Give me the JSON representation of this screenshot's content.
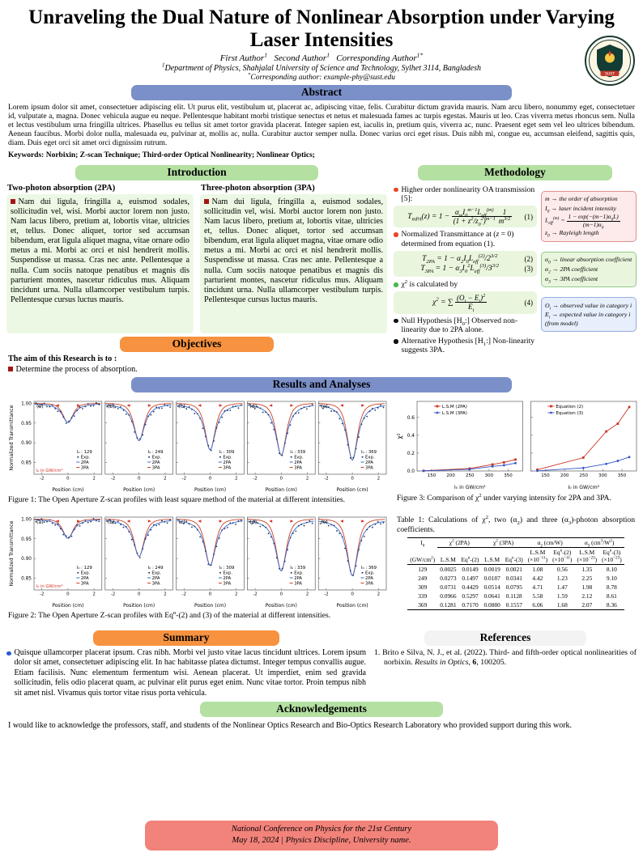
{
  "header": {
    "title": "Unraveling the Dual Nature of Nonlinear Absorption under Varying Laser Intensities",
    "authors_html": "First Author<sup>1</sup>&nbsp;&nbsp; Second Author<sup>1</sup>&nbsp;&nbsp; Corresponding Author<sup>1*</sup>",
    "affiliation_html": "<sup>1</sup>Department of Physics, Shahjalal University of Science and Technology, Sylhet 3114, Bangladesh",
    "corresponding_html": "<sup>*</sup>Corresponding author: example-phy@sust.edu",
    "logo_banner": "SUST"
  },
  "sections": {
    "abstract_title": "Abstract",
    "introduction_title": "Introduction",
    "methodology_title": "Methodology",
    "objectives_title": "Objectives",
    "results_title": "Results and Analyses",
    "summary_title": "Summary",
    "references_title": "References",
    "acknowledgements_title": "Acknowledgements"
  },
  "abstract": {
    "text": "Lorem ipsum dolor sit amet, consectetuer adipiscing elit. Ut purus elit, vestibulum ut, placerat ac, adipiscing vitae, felis. Curabitur dictum gravida mauris. Nam arcu libero, nonummy eget, consectetuer id, vulputate a, magna. Donec vehicula augue eu neque. Pellentesque habitant morbi tristique senectus et netus et malesuada fames ac turpis egestas. Mauris ut leo. Cras viverra metus rhoncus sem. Nulla et lectus vestibulum urna fringilla ultrices. Phasellus eu tellus sit amet tortor gravida placerat. Integer sapien est, iaculis in, pretium quis, viverra ac, nunc. Praesent eget sem vel leo ultrices bibendum. Aenean faucibus. Morbi dolor nulla, malesuada eu, pulvinar at, mollis ac, nulla. Curabitur auctor semper nulla. Donec varius orci eget risus. Duis nibh mi, congue eu, accumsan eleifend, sagittis quis, diam. Duis eget orci sit amet orci dignissim rutrum.",
    "keywords_html": "<b>Keywords: Norbixin; Z-scan Technique; Third-order Optical Nonlinearity; Nonlinear Optics;</b>"
  },
  "introduction": {
    "columns": [
      {
        "heading": "Two-photon absorption (2PA)",
        "text": "Nam dui ligula, fringilla a, euismod sodales, sollicitudin vel, wisi. Morbi auctor lorem non justo. Nam lacus libero, pretium at, lobortis vitae, ultricies et, tellus. Donec aliquet, tortor sed accumsan bibendum, erat ligula aliquet magna, vitae ornare odio metus a mi. Morbi ac orci et nisl hendrerit mollis. Suspendisse ut massa. Cras nec ante. Pellentesque a nulla. Cum sociis natoque penatibus et magnis dis parturient montes, nascetur ridiculus mus. Aliquam tincidunt urna. Nulla ullamcorper vestibulum turpis. Pellentesque cursus luctus mauris."
      },
      {
        "heading": "Three-photon absorption (3PA)",
        "text": "Nam dui ligula, fringilla a, euismod sodales, sollicitudin vel, wisi. Morbi auctor lorem non justo. Nam lacus libero, pretium at, lobortis vitae, ultricies et, tellus. Donec aliquet, tortor sed accumsan bibendum, erat ligula aliquet magna, vitae ornare odio metus a mi. Morbi ac orci et nisl hendrerit mollis. Suspendisse ut massa. Cras nec ante. Pellentesque a nulla. Cum sociis natoque penatibus et magnis dis parturient montes, nascetur ridiculus mus. Aliquam tincidunt urna. Nulla ullamcorper vestibulum turpis. Pellentesque cursus luctus mauris."
      }
    ]
  },
  "objectives": {
    "lead": "The aim of this Research is to :",
    "items": [
      "Determine the process of absorption."
    ]
  },
  "methodology": {
    "bullets_html": [
      "Higher order nonlinearity OA transmission [5]:",
      "Normalized Transmittance at (<i>z</i> = 0) determined from equation (1).",
      "χ<sup>2</sup> is calculated by",
      "Null Hypothesis [H<sub>0</sub>:] Observed non-linearity due to 2PA alone.",
      "Alternative Hypothesis [H<sub>1</sub>:] Non-linearity suggests 3PA."
    ],
    "equations": {
      "eq1_html": "T<sub>mPA</sub>(z) = 1 − <span class='frac'><span class='num'>α<sub>m</sub>I<sub>0</sub><sup>m−1</sup>L<sub>eff</sub><sup>(m)</sup></span><span class='den'>(1 + z<sup>2</sup>/z<sub>0</sub><sup>2</sup>)<sup>m−1</sup></span></span><span class='frac'><span class='num'>1</span><span class='den'>m<sup>3/2</sup></span></span>",
      "eq1_num": "(1)",
      "eq2_html": "T<sub>2PA</sub> = 1 − α<sub>2</sub>I<sub>0</sub>L<sub>eff</sub><sup>(2)</sup>/2<sup>3/2</sup>",
      "eq2_num": "(2)",
      "eq3_html": "T<sub>3PA</sub> = 1 − α<sub>3</sub>I<sub>0</sub><sup>2</sup>L<sub>eff</sub><sup>(3)</sup>/3<sup>3/2</sup>",
      "eq3_num": "(3)",
      "eq4_html": "χ<sup>2</sup> = ∑ <span class='frac'><span class='num'>(O<sub>i</sub> − E<sub>i</sub>)<sup>2</sup></span><span class='den'>E<sub>i</sub></span></span>",
      "eq4_num": "(4)"
    },
    "sidebox_pink": [
      "m → the order of absorption",
      "I<sub>0</sub> → laser incident intensity",
      "L<sub>eff</sub><sup>(m)</sup> = <span class='frac'><span class='num'>1 − exp(−(m−1)α<sub>0</sub>L)</span><span class='den'>(m−1)α<sub>0</sub></span></span>",
      "z<sub>0</sub> → Rayleigh length"
    ],
    "sidebox_green": [
      "α<sub>0</sub> → linear absorption coefficient",
      "α<sub>2</sub> → 2PA coefficient",
      "α<sub>3</sub> → 3PA coefficient"
    ],
    "sidebox_blue": [
      "O<sub>i</sub> → observed value in category <i>i</i>",
      "E<sub>i</sub> → expected value in category <i>i</i> (from model)"
    ]
  },
  "figures": {
    "fig1_caption_html": "Figure 1: The Open Aperture Z-scan profiles with least square method of the material at different intensities.",
    "fig2_caption_html": "Figure 2: The Open Aperture Z-scan profiles with Eq<sup>n</sup>-(2) and (3) of the material at different intensities.",
    "fig3_caption_html": "Figure 3: Comparison of χ<sup>2</sup> under varying intensity for 2PA and 3PA."
  },
  "chart_data": [
    {
      "id": "figure1",
      "type": "line",
      "title": "Open Aperture Z-scan profiles (least square method)",
      "xlabel": "Position (cm)",
      "ylabel": "Normalized Transmittance",
      "xlim": [
        -2.6,
        2.6
      ],
      "ylim": [
        0.82,
        1.005
      ],
      "xticks": [
        -2,
        0,
        2
      ],
      "yticks": [
        1.0,
        0.95,
        0.9,
        0.85
      ],
      "series": [
        "Exp.",
        "2PA",
        "3PA"
      ],
      "annotation": "I₀ in GW/cm²",
      "panels": [
        {
          "label": "(a)",
          "intensity": 129,
          "min_transmittance": 0.951
        },
        {
          "label": "(b)",
          "intensity": 249,
          "min_transmittance": 0.905
        },
        {
          "label": "(c)",
          "intensity": 309,
          "min_transmittance": 0.882
        },
        {
          "label": "(d)",
          "intensity": 339,
          "min_transmittance": 0.868
        },
        {
          "label": "(e)",
          "intensity": 369,
          "min_transmittance": 0.856
        }
      ],
      "colors": {
        "exp": "#1a3a6b",
        "pa2": "#3a68c8",
        "pa3": "#cc4125"
      }
    },
    {
      "id": "figure2",
      "type": "line",
      "title": "Open Aperture Z-scan profiles (Eqn-(2) and (3))",
      "xlabel": "Position (cm)",
      "ylabel": "Normalized Transmittance",
      "xlim": [
        -2.6,
        2.6
      ],
      "ylim": [
        0.82,
        1.005
      ],
      "xticks": [
        -2,
        0,
        2
      ],
      "yticks": [
        1.0,
        0.95,
        0.9,
        0.85
      ],
      "series": [
        "Exp.",
        "2PA",
        "3PA"
      ],
      "annotation": "I₀ in GW/cm²",
      "panels": [
        {
          "label": "(a)",
          "intensity": 129,
          "min_transmittance": 0.951
        },
        {
          "label": "(b)",
          "intensity": 249,
          "min_transmittance": 0.905
        },
        {
          "label": "(c)",
          "intensity": 309,
          "min_transmittance": 0.882
        },
        {
          "label": "(d)",
          "intensity": 339,
          "min_transmittance": 0.868
        },
        {
          "label": "(e)",
          "intensity": 369,
          "min_transmittance": 0.856
        }
      ],
      "colors": {
        "exp": "#1a3a6b",
        "pa2": "#3a68c8",
        "pa3": "#cc4125"
      }
    },
    {
      "id": "figure3",
      "type": "line",
      "title": "Comparison of χ² under varying intensity for 2PA and 3PA",
      "xlabel": "I₀ in GW/cm²",
      "ylabel": "χ²",
      "x": [
        129,
        249,
        309,
        339,
        369
      ],
      "xrange": [
        112,
        388
      ],
      "ylim": [
        0,
        0.78
      ],
      "xticks": [
        150,
        200,
        250,
        300,
        350
      ],
      "yticks": [
        0.0,
        0.2,
        0.4,
        0.6
      ],
      "panels": [
        {
          "series": [
            {
              "name": "L.S.M (2PA)",
              "color": "#cc3322",
              "marker": "s",
              "values": [
                0.0025,
                0.0273,
                0.0731,
                0.0966,
                0.1281
              ]
            },
            {
              "name": "L.S.M (3PA)",
              "color": "#3355cc",
              "marker": "o",
              "values": [
                0.0019,
                0.0187,
                0.0514,
                0.0641,
                0.088
              ]
            }
          ]
        },
        {
          "series": [
            {
              "name": "Equation (2)",
              "color": "#cc3322",
              "marker": "s",
              "values": [
                0.0149,
                0.1497,
                0.4429,
                0.5297,
                0.717
              ]
            },
            {
              "name": "Equation (3)",
              "color": "#3355cc",
              "marker": "o",
              "values": [
                0.0021,
                0.0341,
                0.0795,
                0.1128,
                0.1557
              ]
            }
          ]
        }
      ]
    }
  ],
  "table1": {
    "caption_html": "Table 1: Calculations of χ<sup>2</sup>, two (α<sub>2</sub>) and three (α<sub>3</sub>)-photon absorption coefficients.",
    "groups": [
      {
        "label_html": "I<sub>0</sub>",
        "span": 1
      },
      {
        "label_html": "χ<sup>2</sup> (2PA)",
        "span": 2
      },
      {
        "label_html": "χ<sup>2</sup> (3PA)",
        "span": 2
      },
      {
        "label_html": "α<sub>2</sub> (cm/W)",
        "span": 2
      },
      {
        "label_html": "α<sub>3</sub> (cm<sup>3</sup>/W<sup>2</sup>)",
        "span": 2
      }
    ],
    "subheads_html": [
      "(GW/cm<sup>2</sup>)",
      "L.S.M",
      "Eq<sup>n</sup>-(2)",
      "L.S.M",
      "Eq<sup>n</sup>-(3)",
      "L.S.M<br>(×10<sup>−11</sup>)",
      "Eq<sup>n</sup>-(2)<br>(×10<sup>−11</sup>)",
      "L.S.M<br>(×10<sup>−23</sup>)",
      "Eq<sup>n</sup>-(3)<br>(×10<sup>−23</sup>)"
    ],
    "rows": [
      [
        "129",
        "0.0025",
        "0.0149",
        "0.0019",
        "0.0021",
        "1.08",
        "0.56",
        "1.35",
        "8.10"
      ],
      [
        "249",
        "0.0273",
        "0.1497",
        "0.0187",
        "0.0341",
        "4.42",
        "1.23",
        "2.25",
        "9.10"
      ],
      [
        "309",
        "0.0731",
        "0.4429",
        "0.0514",
        "0.0795",
        "4.71",
        "1.47",
        "1.98",
        "8.78"
      ],
      [
        "339",
        "0.0966",
        "0.5297",
        "0.0641",
        "0.1128",
        "5.58",
        "1.59",
        "2.12",
        "8.61"
      ],
      [
        "369",
        "0.1281",
        "0.7170",
        "0.0880",
        "0.1557",
        "6.06",
        "1.68",
        "2.07",
        "8.36"
      ]
    ]
  },
  "summary": {
    "text": "Quisque ullamcorper placerat ipsum. Cras nibh. Morbi vel justo vitae lacus tincidunt ultrices. Lorem ipsum dolor sit amet, consectetuer adipiscing elit. In hac habitasse platea dictumst. Integer tempus convallis augue. Etiam facilisis. Nunc elementum fermentum wisi. Aenean placerat. Ut imperdiet, enim sed gravida sollicitudin, felis odio placerat quam, ac pulvinar elit purus eget enim. Nunc vitae tortor. Proin tempus nibh sit amet nisl. Vivamus quis tortor vitae risus porta vehicula."
  },
  "references": {
    "items_html": [
      "1. Brito e Silva, N. J., et al. (2022). Third- and fifth-order optical nonlinearities of norbixin. <i>Results in Optics</i>, <b>6</b>, 100205."
    ]
  },
  "acknowledgements": {
    "text": "I would like to acknowledge the professors, staff, and students of the Nonlinear Optics Research and Bio-Optics Research Laboratory who provided support during this work."
  },
  "footer": {
    "line1": "National Conference on Physics for the 21st Century",
    "line2": "May 18, 2024  |  Physics Discipline, University name."
  },
  "colors": {
    "bar_blue": "#7b90c9",
    "bar_green": "#b4e0a2",
    "bar_orange": "#f69240",
    "footer_salmon": "#f2837b",
    "intro_box_green": "#ecf8e4",
    "bullet_red": "#e8452c",
    "bullet_green": "#49b84f",
    "bullet_blue": "#2a5bd7"
  }
}
